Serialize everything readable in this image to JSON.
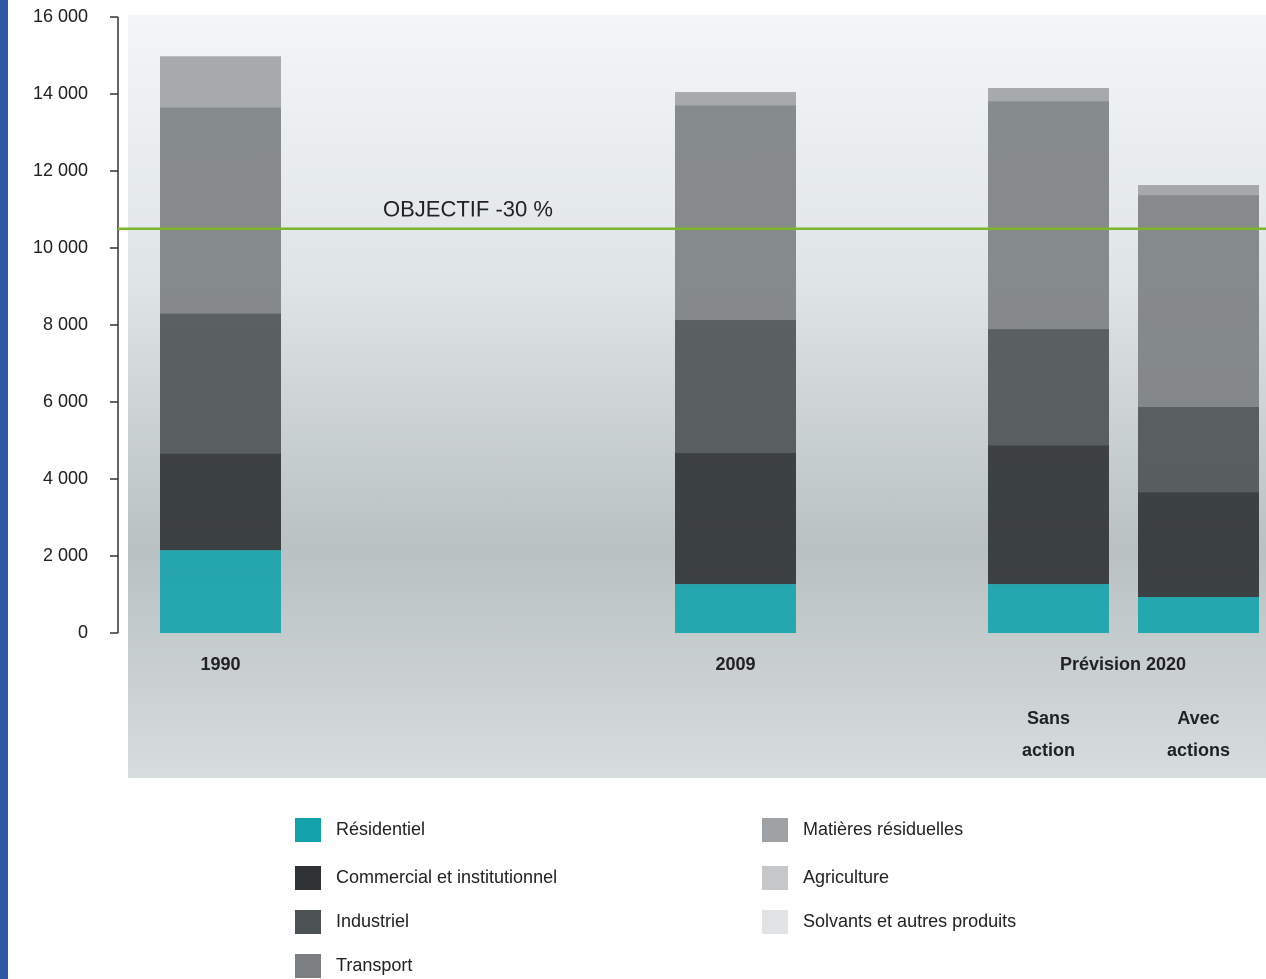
{
  "chart_data": {
    "type": "bar",
    "stacked": true,
    "categories": [
      "1990",
      "2009",
      "Sans action",
      "Avec actions"
    ],
    "group_label": "Prévision 2020",
    "series": [
      {
        "name": "Résidentiel",
        "color": "#14a3ac",
        "values": [
          2150,
          1270,
          1270,
          935
        ]
      },
      {
        "name": "Commercial et institutionnel",
        "color": "#2e3234",
        "values": [
          2520,
          3405,
          3610,
          2725
        ]
      },
      {
        "name": "Industriel",
        "color": "#4d5254",
        "values": [
          3635,
          3455,
          3015,
          2210
        ]
      },
      {
        "name": "Transport",
        "color": "#7b7f81",
        "values": [
          5350,
          5580,
          5920,
          5505
        ]
      },
      {
        "name": "Matières résiduelles",
        "color": "#9fa2a4",
        "values": [
          1325,
          340,
          340,
          260
        ]
      },
      {
        "name": "Agriculture",
        "color": "#c5c7c8",
        "values": [
          0,
          0,
          0,
          0
        ]
      },
      {
        "name": "Solvants et autres produits",
        "color": "#e2e3e4",
        "values": [
          0,
          0,
          0,
          0
        ]
      }
    ],
    "ylim": [
      0,
      16000
    ],
    "yticks": [
      0,
      {
        "value": 2000,
        "label": "2 000"
      },
      {
        "value": 4000,
        "label": "4 000"
      },
      {
        "value": 6000,
        "label": "6 000"
      },
      {
        "value": 8000,
        "label": "8 000"
      },
      {
        "value": 10000,
        "label": "10 000"
      },
      {
        "value": 12000,
        "label": "12 000"
      },
      {
        "value": 14000,
        "label": "14 000"
      },
      {
        "value": 16000,
        "label": "16 000"
      }
    ],
    "reference_line": {
      "value": 10500,
      "label": "OBJECTIF -30 %",
      "color": "#7db52c"
    }
  }
}
